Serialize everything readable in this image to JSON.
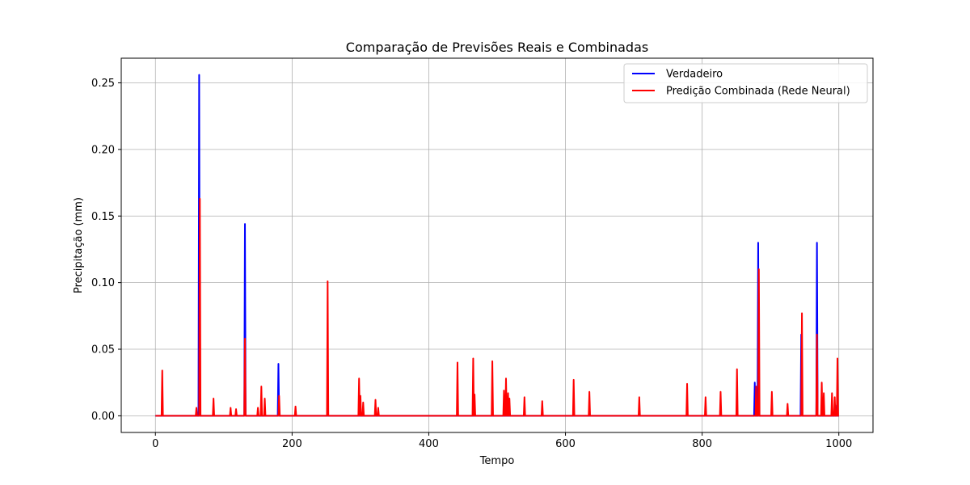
{
  "chart_data": {
    "type": "line",
    "title": "Comparação de Previsões Reais e Combinadas",
    "xlabel": "Tempo",
    "ylabel": "Precipitação (mm)",
    "xlim": [
      -50,
      1050
    ],
    "ylim": [
      -0.0125,
      0.2685
    ],
    "xticks": [
      0,
      200,
      400,
      600,
      800,
      1000
    ],
    "yticks": [
      0.0,
      0.05,
      0.1,
      0.15,
      0.2,
      0.25
    ],
    "xtick_labels": [
      "0",
      "200",
      "400",
      "600",
      "800",
      "1000"
    ],
    "ytick_labels": [
      "0.00",
      "0.05",
      "0.10",
      "0.15",
      "0.20",
      "0.25"
    ],
    "grid": true,
    "legend_position": "top-right",
    "series": [
      {
        "name": "Verdadeiro",
        "color": "#0000ff",
        "baseline": 0.0,
        "end": 1000,
        "spikes": [
          [
            64,
            0.256
          ],
          [
            131,
            0.144
          ],
          [
            180,
            0.039
          ],
          [
            877,
            0.025
          ],
          [
            882,
            0.13
          ],
          [
            945,
            0.061
          ],
          [
            968,
            0.13
          ],
          [
            997,
            0.008
          ]
        ]
      },
      {
        "name": "Predição Combinada (Rede Neural)",
        "color": "#ff0000",
        "baseline": 0.0,
        "end": 1000,
        "spikes": [
          [
            10,
            0.034
          ],
          [
            60,
            0.006
          ],
          [
            65,
            0.163
          ],
          [
            85,
            0.013
          ],
          [
            110,
            0.006
          ],
          [
            118,
            0.005
          ],
          [
            131,
            0.058
          ],
          [
            150,
            0.006
          ],
          [
            155,
            0.022
          ],
          [
            160,
            0.013
          ],
          [
            181,
            0.015
          ],
          [
            205,
            0.007
          ],
          [
            252,
            0.101
          ],
          [
            298,
            0.028
          ],
          [
            300,
            0.015
          ],
          [
            304,
            0.01
          ],
          [
            322,
            0.012
          ],
          [
            326,
            0.006
          ],
          [
            442,
            0.04
          ],
          [
            465,
            0.043
          ],
          [
            467,
            0.016
          ],
          [
            493,
            0.041
          ],
          [
            510,
            0.019
          ],
          [
            513,
            0.028
          ],
          [
            516,
            0.017
          ],
          [
            518,
            0.013
          ],
          [
            540,
            0.014
          ],
          [
            566,
            0.011
          ],
          [
            612,
            0.027
          ],
          [
            635,
            0.018
          ],
          [
            708,
            0.014
          ],
          [
            778,
            0.024
          ],
          [
            805,
            0.014
          ],
          [
            827,
            0.018
          ],
          [
            851,
            0.035
          ],
          [
            879,
            0.022
          ],
          [
            883,
            0.11
          ],
          [
            902,
            0.018
          ],
          [
            925,
            0.009
          ],
          [
            946,
            0.077
          ],
          [
            968,
            0.061
          ],
          [
            975,
            0.025
          ],
          [
            978,
            0.017
          ],
          [
            990,
            0.017
          ],
          [
            994,
            0.014
          ],
          [
            998,
            0.043
          ]
        ]
      }
    ]
  }
}
